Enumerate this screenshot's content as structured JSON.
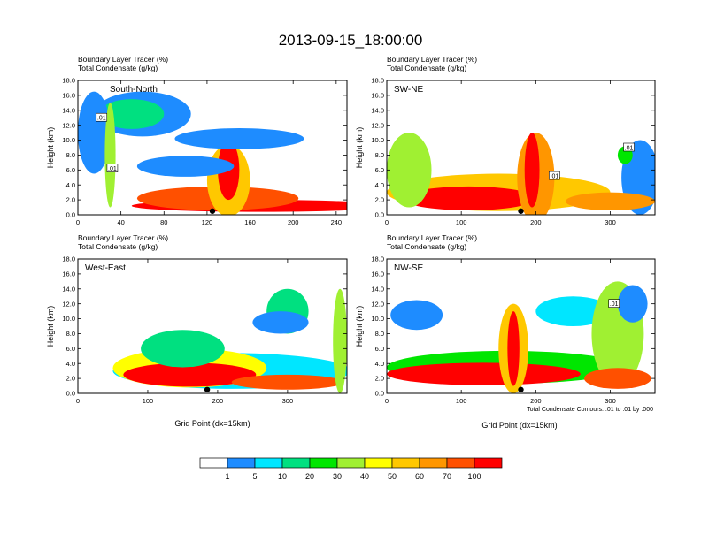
{
  "figure": {
    "title": "2013-09-15_18:00:00",
    "subtitle_line1": "Boundary Layer Tracer   (%)",
    "subtitle_line2": "Total Condensate   (g/kg)",
    "y_axis_label": "Height (km)",
    "x_axis_label": "Grid Point (dx=15km)",
    "contour_note": "Total Condensate Contours: .01 to .01 by .000"
  },
  "colorbar": {
    "levels": [
      "1",
      "5",
      "10",
      "20",
      "30",
      "40",
      "50",
      "60",
      "70",
      "100"
    ],
    "colors": [
      "#ffffff",
      "#1e8cff",
      "#00e6ff",
      "#00e080",
      "#00e600",
      "#a0f032",
      "#ffff00",
      "#ffc800",
      "#ff9600",
      "#ff5000",
      "#ff0000"
    ]
  },
  "chart_data": [
    {
      "type": "heatmap",
      "panel_label": "South-North",
      "xlim": [
        0,
        250
      ],
      "ylim": [
        0,
        18
      ],
      "xticks": [
        0,
        40,
        80,
        120,
        160,
        200,
        240
      ],
      "yticks": [
        "0.0",
        "2.0",
        "4.0",
        "6.0",
        "8.0",
        "10.0",
        "12.0",
        "14.0",
        "16.0",
        "18.0"
      ],
      "marker_x": 125,
      "contour_labels": [
        {
          "text": ".01",
          "x": 22,
          "y": 13
        },
        {
          "text": ".01",
          "x": 32,
          "y": 6.2
        }
      ],
      "features": [
        {
          "x": 170,
          "y": 1.2,
          "rx": 120,
          "ry": 0.8,
          "level": 10
        },
        {
          "x": 130,
          "y": 2.2,
          "rx": 75,
          "ry": 1.6,
          "level": 9
        },
        {
          "x": 140,
          "y": 4.6,
          "rx": 20,
          "ry": 4.8,
          "level": 7
        },
        {
          "x": 140,
          "y": 6.0,
          "rx": 10,
          "ry": 4.0,
          "level": 10
        },
        {
          "x": 60,
          "y": 13.5,
          "rx": 45,
          "ry": 3.0,
          "level": 1
        },
        {
          "x": 50,
          "y": 13.5,
          "rx": 30,
          "ry": 2.0,
          "level": 3
        },
        {
          "x": 15,
          "y": 11.0,
          "rx": 15,
          "ry": 5.5,
          "level": 1
        },
        {
          "x": 30,
          "y": 8.0,
          "rx": 5,
          "ry": 7.0,
          "level": 5
        },
        {
          "x": 100,
          "y": 6.5,
          "rx": 45,
          "ry": 1.4,
          "level": 1
        },
        {
          "x": 150,
          "y": 10.2,
          "rx": 60,
          "ry": 1.4,
          "level": 1
        }
      ]
    },
    {
      "type": "heatmap",
      "panel_label": "SW-NE",
      "xlim": [
        0,
        360
      ],
      "ylim": [
        0,
        18
      ],
      "xticks": [
        0,
        100,
        200,
        300
      ],
      "yticks": [
        "0.0",
        "2.0",
        "4.0",
        "6.0",
        "8.0",
        "10.0",
        "12.0",
        "14.0",
        "16.0",
        "18.0"
      ],
      "marker_x": 180,
      "contour_labels": [
        {
          "text": ".01",
          "x": 225,
          "y": 5.2
        },
        {
          "text": ".01",
          "x": 325,
          "y": 9.0
        }
      ],
      "features": [
        {
          "x": 150,
          "y": 3.0,
          "rx": 150,
          "ry": 2.5,
          "level": 7
        },
        {
          "x": 110,
          "y": 2.2,
          "rx": 90,
          "ry": 1.6,
          "level": 10
        },
        {
          "x": 30,
          "y": 6.0,
          "rx": 30,
          "ry": 5.0,
          "level": 5
        },
        {
          "x": 200,
          "y": 5.0,
          "rx": 25,
          "ry": 6.0,
          "level": 8
        },
        {
          "x": 195,
          "y": 6.0,
          "rx": 10,
          "ry": 5.0,
          "level": 10
        },
        {
          "x": 340,
          "y": 5.0,
          "rx": 25,
          "ry": 5.0,
          "level": 1
        },
        {
          "x": 300,
          "y": 1.8,
          "rx": 60,
          "ry": 1.2,
          "level": 8
        },
        {
          "x": 320,
          "y": 8.0,
          "rx": 10,
          "ry": 1.2,
          "level": 4
        }
      ]
    },
    {
      "type": "heatmap",
      "panel_label": "West-East",
      "xlim": [
        0,
        385
      ],
      "ylim": [
        0,
        18
      ],
      "xticks": [
        0,
        100,
        200,
        300
      ],
      "yticks": [
        "0.0",
        "2.0",
        "4.0",
        "6.0",
        "8.0",
        "10.0",
        "12.0",
        "14.0",
        "16.0",
        "18.0"
      ],
      "marker_x": 185,
      "contour_labels": [],
      "features": [
        {
          "x": 220,
          "y": 3.0,
          "rx": 170,
          "ry": 2.4,
          "level": 2
        },
        {
          "x": 160,
          "y": 3.4,
          "rx": 110,
          "ry": 2.6,
          "level": 6
        },
        {
          "x": 160,
          "y": 2.5,
          "rx": 95,
          "ry": 1.6,
          "level": 10
        },
        {
          "x": 150,
          "y": 6.0,
          "rx": 60,
          "ry": 2.5,
          "level": 3
        },
        {
          "x": 300,
          "y": 1.5,
          "rx": 80,
          "ry": 1.0,
          "level": 9
        },
        {
          "x": 300,
          "y": 11.0,
          "rx": 30,
          "ry": 3.0,
          "level": 3
        },
        {
          "x": 290,
          "y": 9.5,
          "rx": 40,
          "ry": 1.5,
          "level": 1
        },
        {
          "x": 375,
          "y": 7.0,
          "rx": 10,
          "ry": 7.0,
          "level": 5
        }
      ]
    },
    {
      "type": "heatmap",
      "panel_label": "NW-SE",
      "xlim": [
        0,
        360
      ],
      "ylim": [
        0,
        18
      ],
      "xticks": [
        0,
        100,
        200,
        300
      ],
      "yticks": [
        "0.0",
        "2.0",
        "4.0",
        "6.0",
        "8.0",
        "10.0",
        "12.0",
        "14.0",
        "16.0",
        "18.0"
      ],
      "marker_x": 180,
      "contour_labels": [
        {
          "text": ".01",
          "x": 305,
          "y": 12.0
        }
      ],
      "features": [
        {
          "x": 160,
          "y": 3.5,
          "rx": 160,
          "ry": 2.2,
          "level": 4
        },
        {
          "x": 130,
          "y": 2.6,
          "rx": 130,
          "ry": 1.5,
          "level": 10
        },
        {
          "x": 170,
          "y": 6.0,
          "rx": 20,
          "ry": 6.0,
          "level": 7
        },
        {
          "x": 170,
          "y": 6.0,
          "rx": 8,
          "ry": 5.0,
          "level": 10
        },
        {
          "x": 40,
          "y": 10.5,
          "rx": 35,
          "ry": 2.0,
          "level": 1
        },
        {
          "x": 250,
          "y": 11.0,
          "rx": 50,
          "ry": 2.0,
          "level": 2
        },
        {
          "x": 310,
          "y": 8.0,
          "rx": 35,
          "ry": 7.0,
          "level": 5
        },
        {
          "x": 310,
          "y": 2.0,
          "rx": 45,
          "ry": 1.4,
          "level": 9
        },
        {
          "x": 330,
          "y": 12.0,
          "rx": 20,
          "ry": 2.5,
          "level": 1
        }
      ]
    }
  ]
}
